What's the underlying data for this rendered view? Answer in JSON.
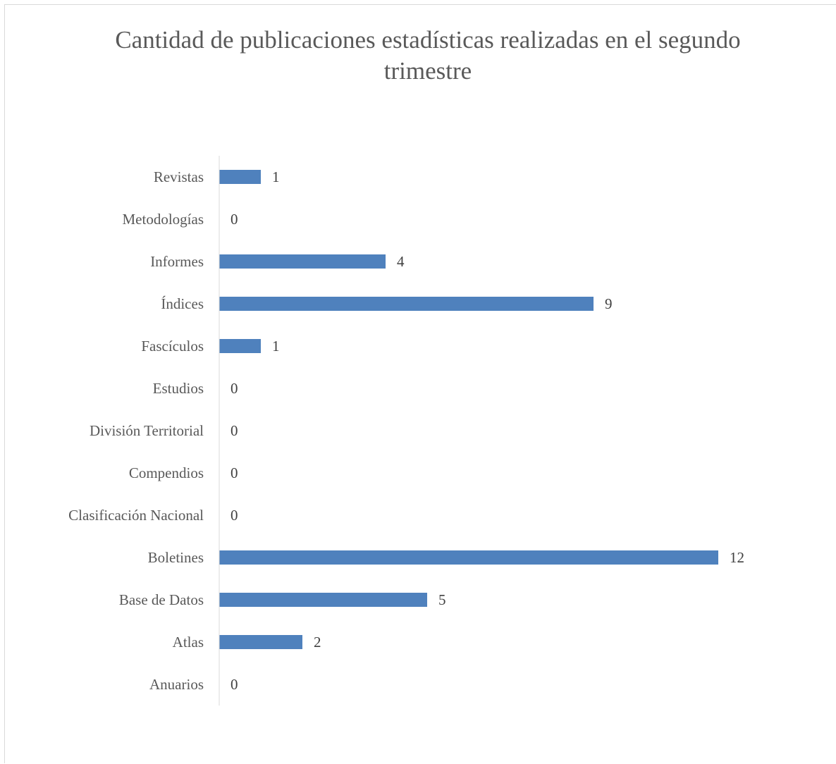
{
  "chart_data": {
    "type": "bar",
    "orientation": "horizontal",
    "title": "Cantidad de publicaciones estadísticas realizadas en el segundo trimestre",
    "categories": [
      "Revistas",
      "Metodologías",
      "Informes",
      "Índices",
      "Fascículos",
      "Estudios",
      "División Territorial",
      "Compendios",
      "Clasificación Nacional",
      "Boletines",
      "Base de Datos",
      "Atlas",
      "Anuarios"
    ],
    "values": [
      1,
      0,
      4,
      9,
      1,
      0,
      0,
      0,
      0,
      12,
      5,
      2,
      0
    ],
    "data_labels": [
      "1",
      "0",
      "4",
      "9",
      "1",
      "0",
      "0",
      "0",
      "0",
      "12",
      "5",
      "2",
      "0"
    ],
    "xlim": [
      0,
      14
    ],
    "grid": false,
    "legend": "none",
    "bar_color": "#4f81bd",
    "axis_color": "#d9d9d9",
    "text_color": "#595959"
  }
}
